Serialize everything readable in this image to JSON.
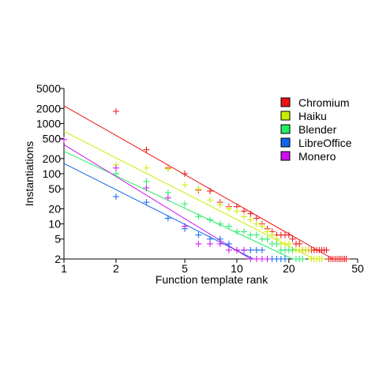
{
  "chart_data": {
    "type": "scatter",
    "xscale": "log",
    "yscale": "log",
    "xlabel": "Function template rank",
    "ylabel": "Instantiations",
    "xlim": [
      1,
      50
    ],
    "ylim": [
      2,
      5000
    ],
    "xticks": [
      1,
      2,
      5,
      10,
      20,
      50
    ],
    "yticks": [
      2,
      5,
      10,
      20,
      50,
      100,
      200,
      500,
      1000,
      2000,
      5000
    ],
    "grid": false,
    "legend_position": "top-right",
    "series": [
      {
        "name": "Chromium",
        "color": "#ee1111",
        "points": [
          [
            2,
            1750
          ],
          [
            3,
            300
          ],
          [
            4,
            130
          ],
          [
            5,
            100
          ],
          [
            6,
            47
          ],
          [
            7,
            45
          ],
          [
            8,
            27
          ],
          [
            9,
            22
          ],
          [
            10,
            22
          ],
          [
            11,
            18
          ],
          [
            12,
            16
          ],
          [
            13,
            13
          ],
          [
            14,
            10
          ],
          [
            15,
            8
          ],
          [
            16,
            7
          ],
          [
            17,
            6
          ],
          [
            18,
            6
          ],
          [
            19,
            6
          ],
          [
            20,
            6
          ],
          [
            21,
            5
          ],
          [
            22,
            4
          ],
          [
            23,
            4
          ],
          [
            24,
            3
          ],
          [
            25,
            3
          ],
          [
            26,
            3
          ],
          [
            27,
            3
          ],
          [
            28,
            3
          ],
          [
            29,
            3
          ],
          [
            30,
            3
          ],
          [
            31,
            3
          ],
          [
            32,
            3
          ],
          [
            33,
            3
          ],
          [
            34,
            2
          ],
          [
            35,
            2
          ],
          [
            36,
            2
          ],
          [
            37,
            2
          ],
          [
            38,
            2
          ],
          [
            39,
            2
          ],
          [
            40,
            2
          ],
          [
            41,
            2
          ],
          [
            42,
            2
          ],
          [
            43,
            2
          ]
        ],
        "fit": [
          [
            1,
            2250
          ],
          [
            36,
            2
          ]
        ]
      },
      {
        "name": "Haiku",
        "color": "#ccee00",
        "points": [
          [
            2,
            150
          ],
          [
            3,
            130
          ],
          [
            4,
            125
          ],
          [
            5,
            60
          ],
          [
            6,
            50
          ],
          [
            7,
            30
          ],
          [
            8,
            24
          ],
          [
            9,
            20
          ],
          [
            10,
            18
          ],
          [
            11,
            14
          ],
          [
            12,
            12
          ],
          [
            13,
            10
          ],
          [
            14,
            9
          ],
          [
            15,
            7
          ],
          [
            16,
            6
          ],
          [
            17,
            5
          ],
          [
            18,
            4
          ],
          [
            19,
            4
          ],
          [
            20,
            4
          ],
          [
            21,
            3
          ],
          [
            22,
            3
          ],
          [
            23,
            3
          ],
          [
            24,
            3
          ],
          [
            25,
            3
          ],
          [
            26,
            3
          ],
          [
            27,
            2
          ],
          [
            28,
            2
          ],
          [
            29,
            2
          ],
          [
            30,
            2
          ],
          [
            31,
            2
          ]
        ],
        "fit": [
          [
            1,
            700
          ],
          [
            28,
            2
          ]
        ]
      },
      {
        "name": "Blender",
        "color": "#22ee66",
        "points": [
          [
            2,
            100
          ],
          [
            3,
            70
          ],
          [
            4,
            42
          ],
          [
            5,
            25
          ],
          [
            6,
            14
          ],
          [
            7,
            12
          ],
          [
            8,
            10
          ],
          [
            9,
            9
          ],
          [
            10,
            7
          ],
          [
            11,
            7
          ],
          [
            12,
            6
          ],
          [
            13,
            6
          ],
          [
            14,
            5
          ],
          [
            15,
            5
          ],
          [
            16,
            4
          ],
          [
            17,
            4
          ],
          [
            18,
            3
          ],
          [
            19,
            3
          ],
          [
            20,
            3
          ],
          [
            21,
            3
          ],
          [
            22,
            2
          ],
          [
            23,
            2
          ],
          [
            24,
            2
          ]
        ],
        "fit": [
          [
            1,
            280
          ],
          [
            21,
            2
          ]
        ]
      },
      {
        "name": "LibreOffice",
        "color": "#1166ee",
        "points": [
          [
            2,
            35
          ],
          [
            3,
            27
          ],
          [
            4,
            13
          ],
          [
            5,
            8
          ],
          [
            6,
            6
          ],
          [
            7,
            5
          ],
          [
            8,
            5
          ],
          [
            9,
            4
          ],
          [
            10,
            3
          ],
          [
            11,
            3
          ],
          [
            12,
            3
          ],
          [
            13,
            3
          ],
          [
            14,
            3
          ],
          [
            15,
            2
          ],
          [
            16,
            2
          ],
          [
            17,
            2
          ],
          [
            18,
            2
          ],
          [
            19,
            2
          ]
        ],
        "fit": [
          [
            1,
            160
          ],
          [
            12.5,
            2
          ]
        ]
      },
      {
        "name": "Monero",
        "color": "#cc11ee",
        "points": [
          [
            1,
            480
          ],
          [
            2,
            130
          ],
          [
            3,
            52
          ],
          [
            4,
            33
          ],
          [
            5,
            9
          ],
          [
            6,
            4
          ],
          [
            7,
            4
          ],
          [
            8,
            4
          ],
          [
            9,
            3
          ],
          [
            10,
            3
          ],
          [
            11,
            3
          ],
          [
            12,
            2
          ],
          [
            13,
            2
          ],
          [
            14,
            2
          ],
          [
            15,
            2
          ]
        ],
        "fit": [
          [
            1,
            380
          ],
          [
            12,
            2
          ]
        ]
      }
    ]
  }
}
